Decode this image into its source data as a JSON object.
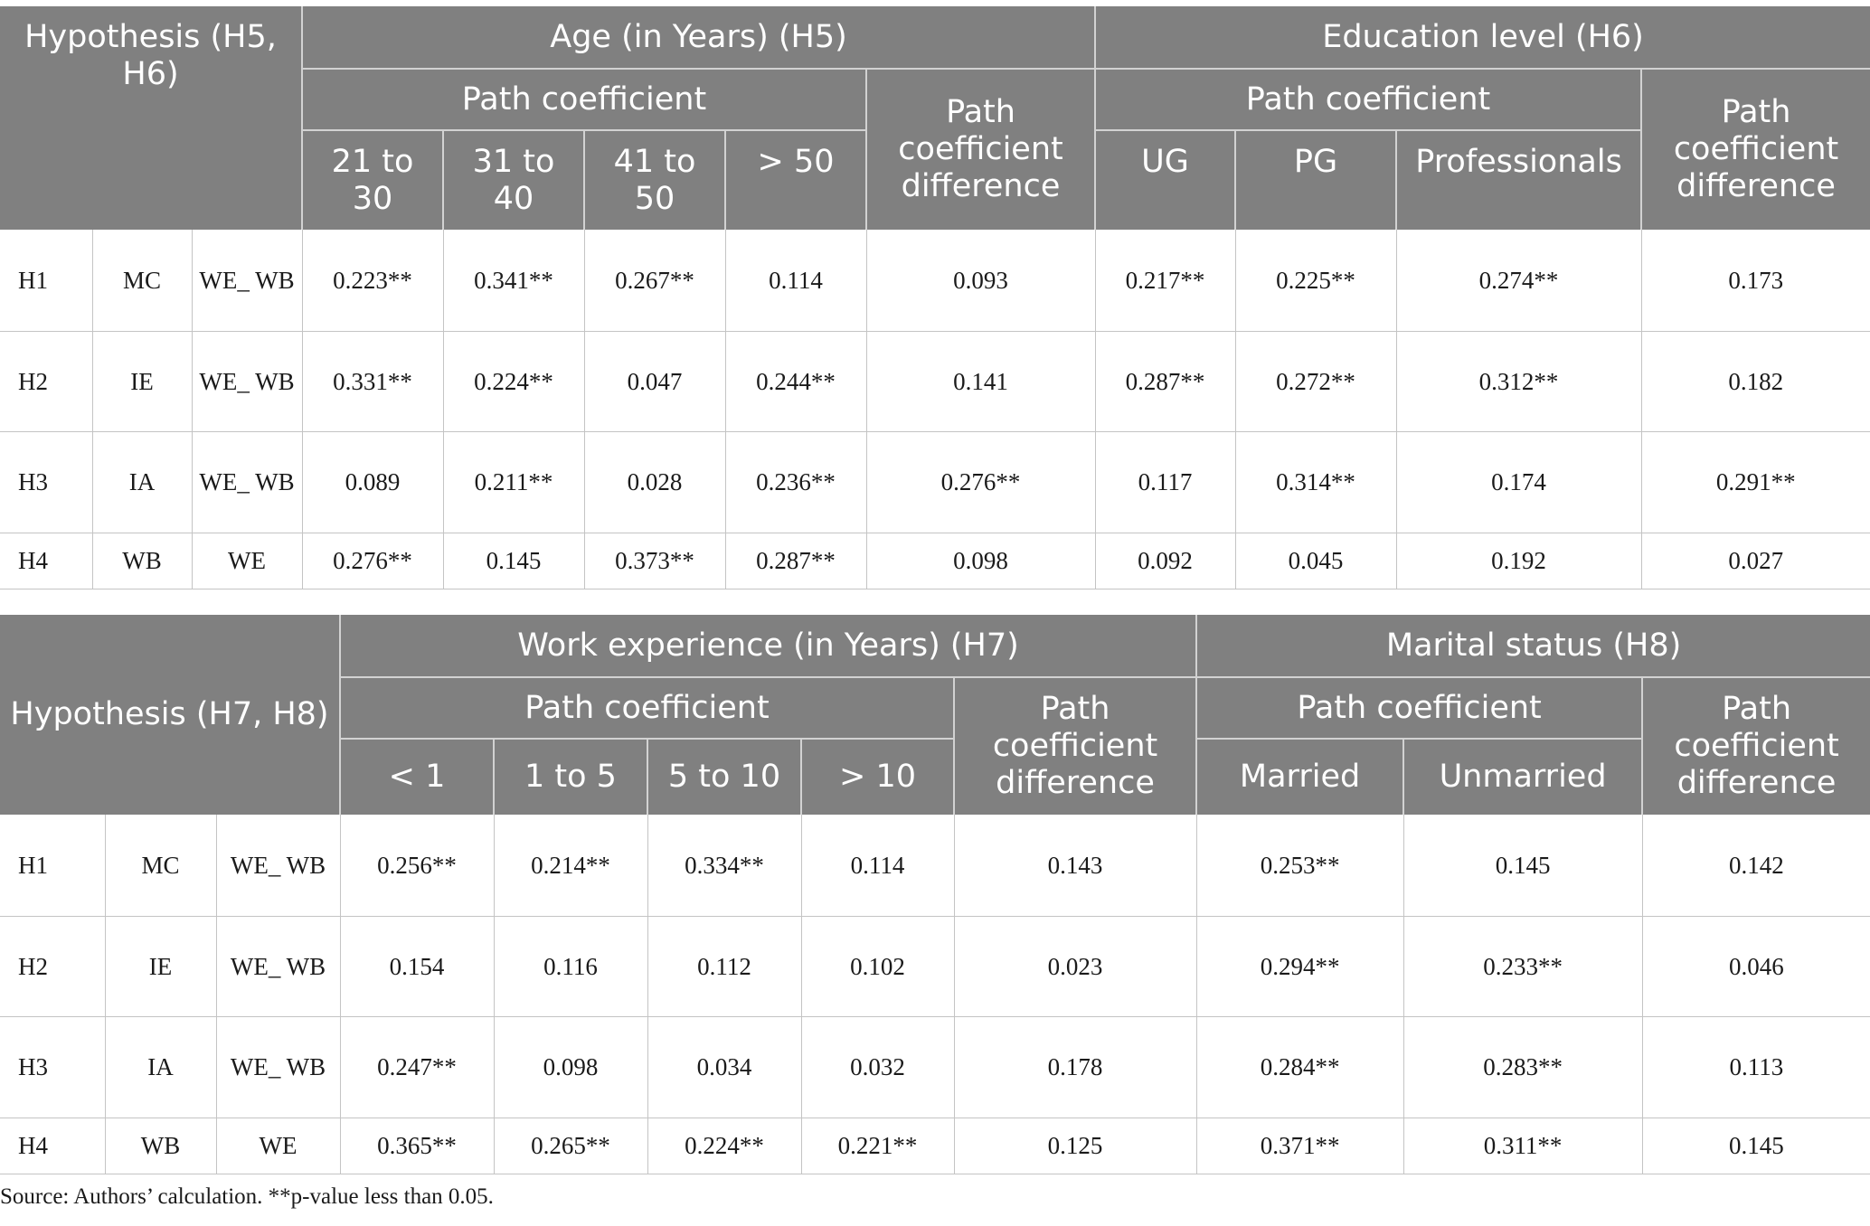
{
  "table1": {
    "hypothesis_header": "Hypothesis (H5, H6)",
    "group1_header": "Age (in Years) (H5)",
    "group2_header": "Education level (H6)",
    "path_coefficient": "Path coefficient",
    "path_difference": "Path coefficient difference",
    "group1_cols": [
      "21 to 30",
      "31 to 40",
      "41 to 50",
      "> 50"
    ],
    "group2_cols": [
      "UG",
      "PG",
      "Professionals"
    ],
    "rows": [
      {
        "h": "H1",
        "var": "MC",
        "dep": "WE_ WB",
        "g1": [
          "0.223**",
          "0.341**",
          "0.267**",
          "0.114"
        ],
        "g1diff": "0.093",
        "g2": [
          "0.217**",
          "0.225**",
          "0.274**"
        ],
        "g2diff": "0.173"
      },
      {
        "h": "H2",
        "var": "IE",
        "dep": "WE_ WB",
        "g1": [
          "0.331**",
          "0.224**",
          "0.047",
          "0.244**"
        ],
        "g1diff": "0.141",
        "g2": [
          "0.287**",
          "0.272**",
          "0.312**"
        ],
        "g2diff": "0.182"
      },
      {
        "h": "H3",
        "var": "IA",
        "dep": "WE_ WB",
        "g1": [
          "0.089",
          "0.211**",
          "0.028",
          "0.236**"
        ],
        "g1diff": "0.276**",
        "g2": [
          "0.117",
          "0.314**",
          "0.174"
        ],
        "g2diff": "0.291**"
      },
      {
        "h": "H4",
        "var": "WB",
        "dep": "WE",
        "g1": [
          "0.276**",
          "0.145",
          "0.373**",
          "0.287**"
        ],
        "g1diff": "0.098",
        "g2": [
          "0.092",
          "0.045",
          "0.192"
        ],
        "g2diff": "0.027"
      }
    ]
  },
  "table2": {
    "hypothesis_header": "Hypothesis (H7, H8)",
    "group1_header": "Work experience (in Years) (H7)",
    "group2_header": "Marital status (H8)",
    "path_coefficient": "Path coefficient",
    "path_difference": "Path coefficient difference",
    "group1_cols": [
      "< 1",
      "1 to 5",
      "5 to 10",
      "> 10"
    ],
    "group2_cols": [
      "Married",
      "Unmarried"
    ],
    "rows": [
      {
        "h": "H1",
        "var": "MC",
        "dep": "WE_ WB",
        "g1": [
          "0.256**",
          "0.214**",
          "0.334**",
          "0.114"
        ],
        "g1diff": "0.143",
        "g2": [
          "0.253**",
          "0.145"
        ],
        "g2diff": "0.142"
      },
      {
        "h": "H2",
        "var": "IE",
        "dep": "WE_ WB",
        "g1": [
          "0.154",
          "0.116",
          "0.112",
          "0.102"
        ],
        "g1diff": "0.023",
        "g2": [
          "0.294**",
          "0.233**"
        ],
        "g2diff": "0.046"
      },
      {
        "h": "H3",
        "var": "IA",
        "dep": "WE_ WB",
        "g1": [
          "0.247**",
          "0.098",
          "0.034",
          "0.032"
        ],
        "g1diff": "0.178",
        "g2": [
          "0.284**",
          "0.283**"
        ],
        "g2diff": "0.113"
      },
      {
        "h": "H4",
        "var": "WB",
        "dep": "WE",
        "g1": [
          "0.365**",
          "0.265**",
          "0.224**",
          "0.221**"
        ],
        "g1diff": "0.125",
        "g2": [
          "0.371**",
          "0.311**"
        ],
        "g2diff": "0.145"
      }
    ]
  },
  "note": "Source: Authors’ calculation. **p-value less than 0.05."
}
